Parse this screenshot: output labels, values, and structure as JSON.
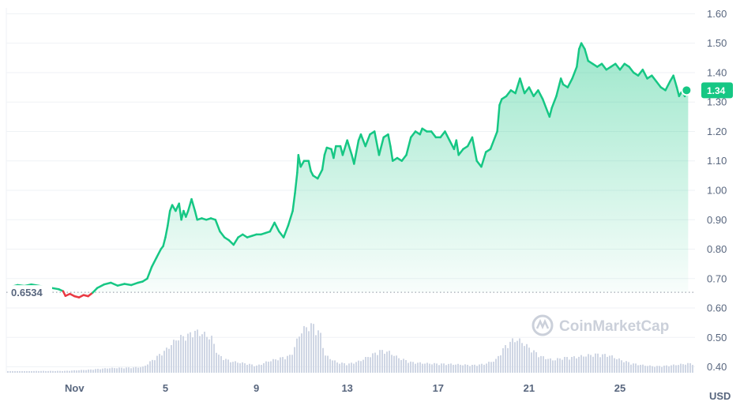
{
  "chart_data": {
    "type": "area",
    "y_ticks": [
      "1.60",
      "1.50",
      "1.40",
      "1.30",
      "1.20",
      "1.10",
      "1.00",
      "0.90",
      "0.80",
      "0.70",
      "0.60",
      "0.50",
      "0.40"
    ],
    "ylim": [
      0.38,
      1.62
    ],
    "x_ticks": [
      {
        "label": "Nov",
        "day": 1
      },
      {
        "label": "5",
        "day": 5
      },
      {
        "label": "9",
        "day": 9
      },
      {
        "label": "13",
        "day": 13
      },
      {
        "label": "17",
        "day": 17
      },
      {
        "label": "21",
        "day": 21
      },
      {
        "label": "25",
        "day": 25
      }
    ],
    "xlim_days": [
      -2.0,
      28.3
    ],
    "opening_price": 0.6534,
    "opening_label": "0.6534",
    "current_price": 1.34,
    "current_label": "1.34",
    "unit_label": "USD",
    "watermark": "CoinMarketCap",
    "colors": {
      "up": "#16c784",
      "down": "#ea3943",
      "volume": "#cfd6e4",
      "grid": "#eff2f5"
    },
    "price": [
      [
        -1.8,
        0.672
      ],
      [
        -1.5,
        0.678
      ],
      [
        -1.2,
        0.675
      ],
      [
        -0.9,
        0.68
      ],
      [
        -0.6,
        0.676
      ],
      [
        -0.3,
        0.672
      ],
      [
        0.0,
        0.668
      ],
      [
        0.3,
        0.664
      ],
      [
        0.5,
        0.657
      ],
      [
        0.6,
        0.641
      ],
      [
        0.8,
        0.648
      ],
      [
        1.0,
        0.64
      ],
      [
        1.2,
        0.636
      ],
      [
        1.4,
        0.644
      ],
      [
        1.6,
        0.64
      ],
      [
        1.8,
        0.652
      ],
      [
        2.0,
        0.668
      ],
      [
        2.3,
        0.68
      ],
      [
        2.6,
        0.686
      ],
      [
        2.9,
        0.676
      ],
      [
        3.2,
        0.682
      ],
      [
        3.5,
        0.678
      ],
      [
        3.8,
        0.686
      ],
      [
        4.0,
        0.69
      ],
      [
        4.2,
        0.7
      ],
      [
        4.4,
        0.74
      ],
      [
        4.6,
        0.77
      ],
      [
        4.8,
        0.8
      ],
      [
        4.9,
        0.81
      ],
      [
        5.0,
        0.84
      ],
      [
        5.1,
        0.88
      ],
      [
        5.2,
        0.93
      ],
      [
        5.3,
        0.95
      ],
      [
        5.45,
        0.93
      ],
      [
        5.6,
        0.955
      ],
      [
        5.7,
        0.9
      ],
      [
        5.8,
        0.93
      ],
      [
        5.9,
        0.91
      ],
      [
        6.0,
        0.93
      ],
      [
        6.15,
        0.97
      ],
      [
        6.3,
        0.93
      ],
      [
        6.4,
        0.9
      ],
      [
        6.6,
        0.905
      ],
      [
        6.8,
        0.9
      ],
      [
        7.0,
        0.905
      ],
      [
        7.2,
        0.9
      ],
      [
        7.4,
        0.86
      ],
      [
        7.6,
        0.84
      ],
      [
        7.8,
        0.83
      ],
      [
        8.0,
        0.815
      ],
      [
        8.2,
        0.84
      ],
      [
        8.4,
        0.85
      ],
      [
        8.6,
        0.84
      ],
      [
        8.8,
        0.845
      ],
      [
        9.0,
        0.85
      ],
      [
        9.2,
        0.85
      ],
      [
        9.4,
        0.855
      ],
      [
        9.6,
        0.86
      ],
      [
        9.8,
        0.89
      ],
      [
        10.0,
        0.86
      ],
      [
        10.2,
        0.84
      ],
      [
        10.4,
        0.88
      ],
      [
        10.6,
        0.93
      ],
      [
        10.7,
        0.99
      ],
      [
        10.8,
        1.06
      ],
      [
        10.85,
        1.12
      ],
      [
        10.95,
        1.08
      ],
      [
        11.1,
        1.1
      ],
      [
        11.3,
        1.1
      ],
      [
        11.4,
        1.065
      ],
      [
        11.5,
        1.05
      ],
      [
        11.7,
        1.04
      ],
      [
        11.9,
        1.07
      ],
      [
        12.0,
        1.12
      ],
      [
        12.1,
        1.145
      ],
      [
        12.3,
        1.14
      ],
      [
        12.4,
        1.11
      ],
      [
        12.5,
        1.15
      ],
      [
        12.7,
        1.15
      ],
      [
        12.8,
        1.12
      ],
      [
        13.0,
        1.17
      ],
      [
        13.2,
        1.12
      ],
      [
        13.3,
        1.09
      ],
      [
        13.5,
        1.17
      ],
      [
        13.6,
        1.19
      ],
      [
        13.8,
        1.15
      ],
      [
        14.0,
        1.19
      ],
      [
        14.2,
        1.2
      ],
      [
        14.4,
        1.12
      ],
      [
        14.6,
        1.18
      ],
      [
        14.8,
        1.19
      ],
      [
        14.9,
        1.15
      ],
      [
        15.0,
        1.1
      ],
      [
        15.2,
        1.11
      ],
      [
        15.4,
        1.1
      ],
      [
        15.6,
        1.12
      ],
      [
        15.8,
        1.18
      ],
      [
        16.0,
        1.2
      ],
      [
        16.2,
        1.19
      ],
      [
        16.3,
        1.21
      ],
      [
        16.5,
        1.2
      ],
      [
        16.7,
        1.2
      ],
      [
        16.9,
        1.18
      ],
      [
        17.1,
        1.18
      ],
      [
        17.3,
        1.2
      ],
      [
        17.5,
        1.17
      ],
      [
        17.7,
        1.14
      ],
      [
        17.8,
        1.17
      ],
      [
        17.9,
        1.12
      ],
      [
        18.1,
        1.14
      ],
      [
        18.3,
        1.15
      ],
      [
        18.5,
        1.18
      ],
      [
        18.7,
        1.1
      ],
      [
        18.9,
        1.08
      ],
      [
        19.1,
        1.13
      ],
      [
        19.3,
        1.14
      ],
      [
        19.6,
        1.2
      ],
      [
        19.7,
        1.29
      ],
      [
        19.8,
        1.31
      ],
      [
        20.0,
        1.32
      ],
      [
        20.2,
        1.34
      ],
      [
        20.4,
        1.33
      ],
      [
        20.6,
        1.38
      ],
      [
        20.8,
        1.33
      ],
      [
        21.0,
        1.35
      ],
      [
        21.2,
        1.32
      ],
      [
        21.4,
        1.34
      ],
      [
        21.6,
        1.31
      ],
      [
        21.8,
        1.27
      ],
      [
        21.9,
        1.25
      ],
      [
        22.0,
        1.28
      ],
      [
        22.2,
        1.32
      ],
      [
        22.4,
        1.38
      ],
      [
        22.5,
        1.36
      ],
      [
        22.7,
        1.35
      ],
      [
        22.9,
        1.38
      ],
      [
        23.1,
        1.42
      ],
      [
        23.2,
        1.48
      ],
      [
        23.3,
        1.5
      ],
      [
        23.45,
        1.48
      ],
      [
        23.6,
        1.44
      ],
      [
        23.8,
        1.43
      ],
      [
        24.0,
        1.42
      ],
      [
        24.2,
        1.43
      ],
      [
        24.4,
        1.41
      ],
      [
        24.6,
        1.42
      ],
      [
        24.8,
        1.43
      ],
      [
        25.0,
        1.41
      ],
      [
        25.2,
        1.43
      ],
      [
        25.4,
        1.42
      ],
      [
        25.6,
        1.4
      ],
      [
        25.8,
        1.39
      ],
      [
        26.0,
        1.41
      ],
      [
        26.2,
        1.38
      ],
      [
        26.4,
        1.39
      ],
      [
        26.6,
        1.37
      ],
      [
        26.8,
        1.35
      ],
      [
        27.0,
        1.34
      ],
      [
        27.2,
        1.37
      ],
      [
        27.35,
        1.39
      ],
      [
        27.5,
        1.35
      ],
      [
        27.6,
        1.32
      ],
      [
        27.75,
        1.34
      ],
      [
        27.85,
        1.32
      ],
      [
        28.0,
        1.34
      ]
    ],
    "volume": [
      [
        -2.0,
        0.02
      ],
      [
        -0.5,
        0.03
      ],
      [
        0.5,
        0.03
      ],
      [
        1.5,
        0.05
      ],
      [
        2.5,
        0.08
      ],
      [
        3.5,
        0.09
      ],
      [
        4.0,
        0.1
      ],
      [
        4.5,
        0.25
      ],
      [
        5.0,
        0.4
      ],
      [
        5.5,
        0.6
      ],
      [
        6.0,
        0.65
      ],
      [
        6.2,
        0.72
      ],
      [
        6.6,
        0.68
      ],
      [
        7.0,
        0.6
      ],
      [
        7.3,
        0.3
      ],
      [
        7.8,
        0.2
      ],
      [
        8.5,
        0.16
      ],
      [
        9.0,
        0.12
      ],
      [
        9.5,
        0.2
      ],
      [
        10.0,
        0.25
      ],
      [
        10.5,
        0.3
      ],
      [
        10.9,
        0.7
      ],
      [
        11.2,
        0.8
      ],
      [
        11.5,
        0.82
      ],
      [
        11.8,
        0.65
      ],
      [
        12.0,
        0.3
      ],
      [
        12.5,
        0.18
      ],
      [
        13.0,
        0.15
      ],
      [
        13.5,
        0.2
      ],
      [
        14.0,
        0.3
      ],
      [
        14.4,
        0.38
      ],
      [
        14.8,
        0.36
      ],
      [
        15.2,
        0.26
      ],
      [
        15.8,
        0.18
      ],
      [
        16.5,
        0.16
      ],
      [
        17.5,
        0.15
      ],
      [
        18.5,
        0.13
      ],
      [
        19.0,
        0.15
      ],
      [
        19.5,
        0.22
      ],
      [
        19.9,
        0.45
      ],
      [
        20.3,
        0.58
      ],
      [
        20.6,
        0.55
      ],
      [
        21.0,
        0.42
      ],
      [
        21.5,
        0.28
      ],
      [
        22.0,
        0.22
      ],
      [
        22.5,
        0.26
      ],
      [
        23.0,
        0.27
      ],
      [
        23.5,
        0.3
      ],
      [
        24.0,
        0.32
      ],
      [
        24.5,
        0.3
      ],
      [
        25.0,
        0.22
      ],
      [
        25.5,
        0.16
      ],
      [
        26.0,
        0.13
      ],
      [
        26.5,
        0.11
      ],
      [
        27.0,
        0.12
      ],
      [
        27.5,
        0.14
      ],
      [
        28.0,
        0.16
      ]
    ]
  }
}
